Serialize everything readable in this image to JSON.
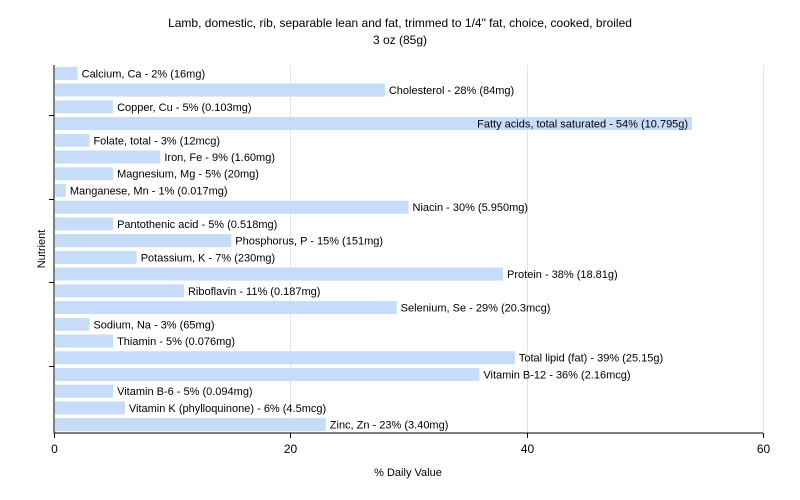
{
  "chart_data": {
    "type": "bar",
    "orientation": "horizontal",
    "title": "Lamb, domestic, rib, separable lean and fat, trimmed to 1/4\" fat, choice, cooked, broiled",
    "subtitle": "3 oz (85g)",
    "xlabel": "% Daily Value",
    "ylabel": "Nutrient",
    "xlim": [
      0,
      60
    ],
    "xticks": [
      "0",
      "20",
      "40",
      "60"
    ],
    "grid": true,
    "bar_color": "#c6dcf9",
    "categories": [
      "Calcium, Ca",
      "Cholesterol",
      "Copper, Cu",
      "Fatty acids, total saturated",
      "Folate, total",
      "Iron, Fe",
      "Magnesium, Mg",
      "Manganese, Mn",
      "Niacin",
      "Pantothenic acid",
      "Phosphorus, P",
      "Potassium, K",
      "Protein",
      "Riboflavin",
      "Selenium, Se",
      "Sodium, Na",
      "Thiamin",
      "Total lipid (fat)",
      "Vitamin B-12",
      "Vitamin B-6",
      "Vitamin K (phylloquinone)",
      "Zinc, Zn"
    ],
    "values": [
      2,
      28,
      5,
      54,
      3,
      9,
      5,
      1,
      30,
      5,
      15,
      7,
      38,
      11,
      29,
      3,
      5,
      39,
      36,
      5,
      6,
      23
    ],
    "labels": [
      "Calcium, Ca - 2% (16mg)",
      "Cholesterol - 28% (84mg)",
      "Copper, Cu - 5% (0.103mg)",
      "Fatty acids, total saturated - 54% (10.795g)",
      "Folate, total - 3% (12mcg)",
      "Iron, Fe - 9% (1.60mg)",
      "Magnesium, Mg - 5% (20mg)",
      "Manganese, Mn - 1% (0.017mg)",
      "Niacin - 30% (5.950mg)",
      "Pantothenic acid - 5% (0.518mg)",
      "Phosphorus, P - 15% (151mg)",
      "Potassium, K - 7% (230mg)",
      "Protein - 38% (18.81g)",
      "Riboflavin - 11% (0.187mg)",
      "Selenium, Se - 29% (20.3mcg)",
      "Sodium, Na - 3% (65mg)",
      "Thiamin - 5% (0.076mg)",
      "Total lipid (fat) - 39% (25.15g)",
      "Vitamin B-12 - 36% (2.16mcg)",
      "Vitamin B-6 - 5% (0.094mg)",
      "Vitamin K (phylloquinone) - 6% (4.5mcg)",
      "Zinc, Zn - 23% (3.40mg)"
    ]
  }
}
